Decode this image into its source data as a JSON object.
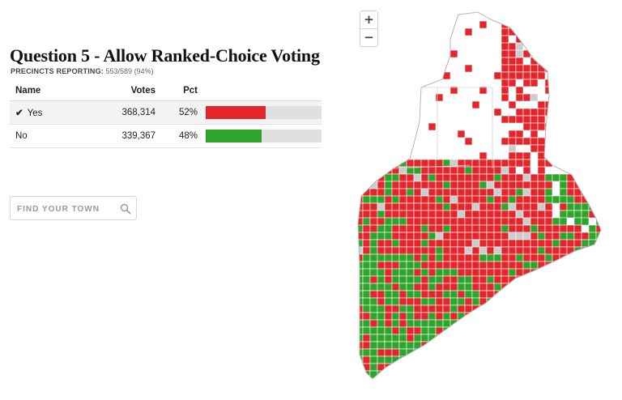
{
  "title": "Question 5 - Allow Ranked-Choice Voting",
  "precincts": {
    "label": "PRECINCTS REPORTING:",
    "value": "553/589 (94%)"
  },
  "table": {
    "headers": {
      "name": "Name",
      "votes": "Votes",
      "pct": "Pct"
    },
    "rows": [
      {
        "check": "✔",
        "name": "Yes",
        "votes": "368,314",
        "pct": "52%",
        "share": 0.52,
        "color": "#e3262b",
        "winner": true
      },
      {
        "check": "",
        "name": "No",
        "votes": "339,367",
        "pct": "48%",
        "share": 0.48,
        "color": "#2ea42a",
        "winner": false
      }
    ]
  },
  "search": {
    "placeholder": "FIND YOUR TOWN",
    "icon": "search-icon"
  },
  "map": {
    "zoom_in": "+",
    "zoom_out": "−",
    "colors": {
      "yes": "#e3262b",
      "no": "#2ea42a",
      "unreported": "#cccccc",
      "outline": "#b5b5b5"
    }
  }
}
